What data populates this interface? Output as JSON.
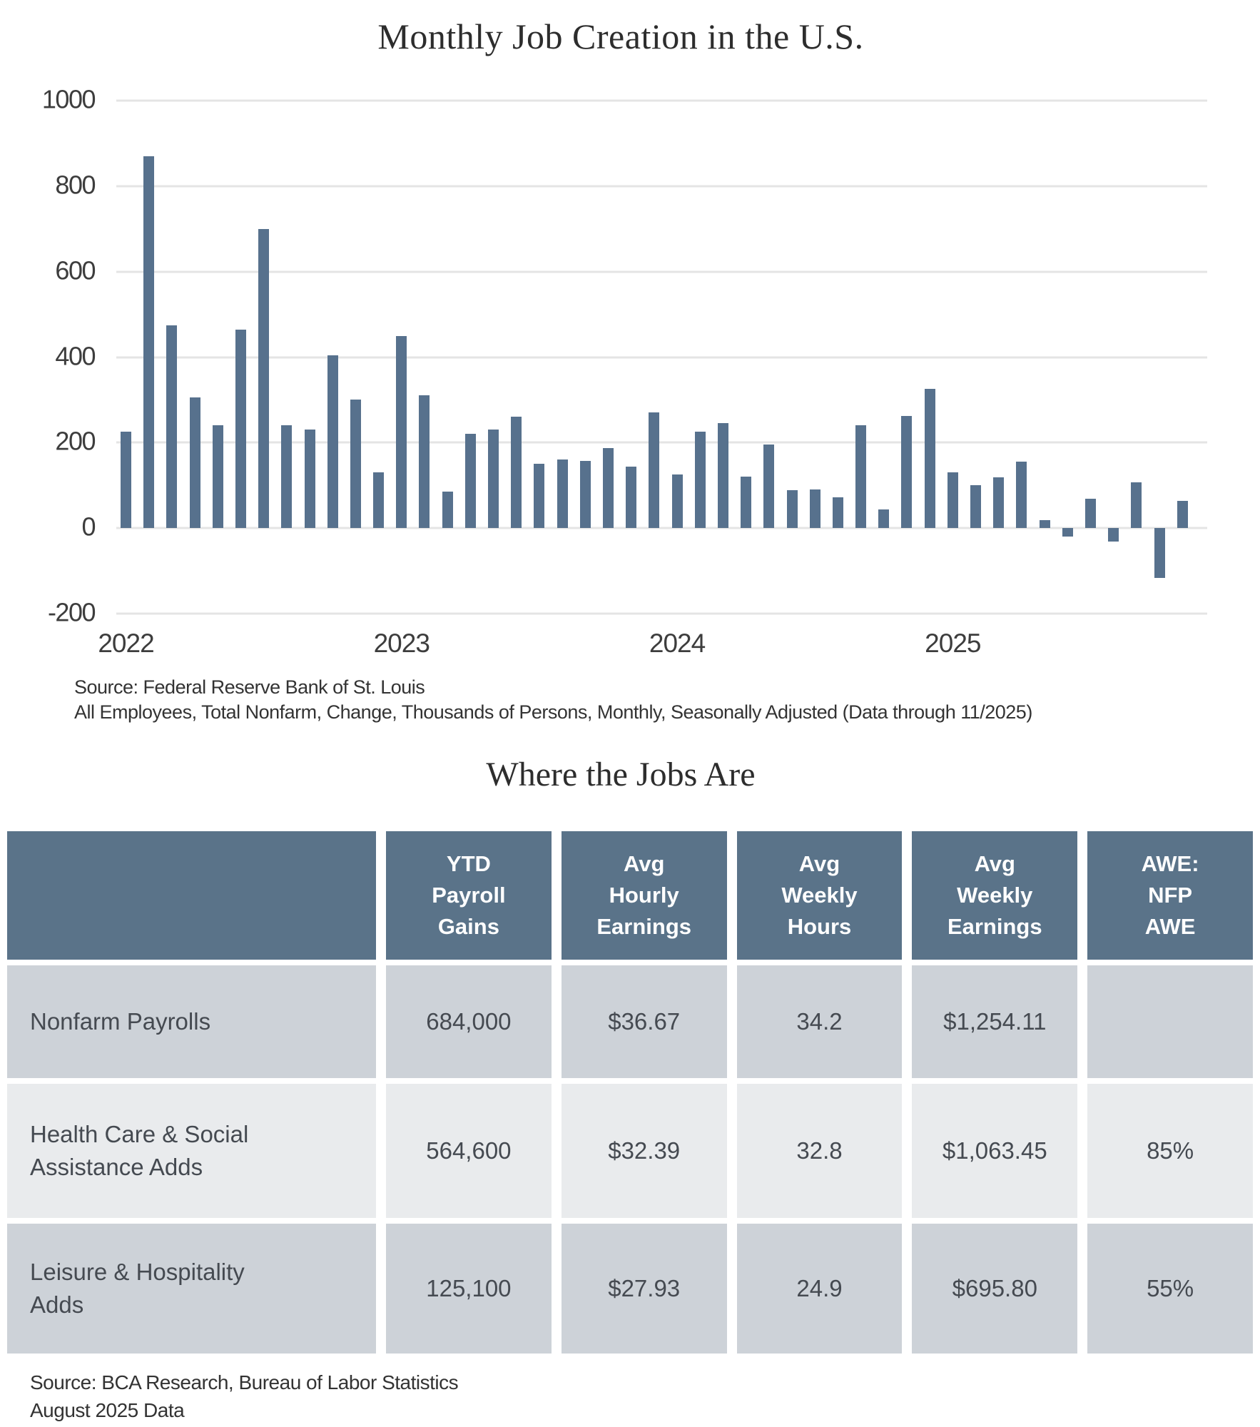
{
  "chart": {
    "title": "Monthly Job Creation in the U.S.",
    "source_line1": "Source: Federal Reserve Bank of St. Louis",
    "source_line2": "All Employees, Total Nonfarm, Change, Thousands of Persons, Monthly, Seasonally Adjusted (Data through 11/2025)",
    "y_ticks": [
      1000,
      800,
      600,
      400,
      200,
      0,
      -200
    ],
    "year_ticks": [
      "2022",
      "2023",
      "2024",
      "2025"
    ],
    "bar_color": "#57718d",
    "grid_color": "#e4e4e4"
  },
  "chart_data": {
    "type": "bar",
    "title": "Monthly Job Creation in the U.S.",
    "xlabel": "",
    "ylabel": "Change, Thousands of Persons",
    "ylim": [
      -200,
      1000
    ],
    "gridline_step": 200,
    "grid": true,
    "x": [
      "2022-01",
      "2022-02",
      "2022-03",
      "2022-04",
      "2022-05",
      "2022-06",
      "2022-07",
      "2022-08",
      "2022-09",
      "2022-10",
      "2022-11",
      "2022-12",
      "2023-01",
      "2023-02",
      "2023-03",
      "2023-04",
      "2023-05",
      "2023-06",
      "2023-07",
      "2023-08",
      "2023-09",
      "2023-10",
      "2023-11",
      "2023-12",
      "2024-01",
      "2024-02",
      "2024-03",
      "2024-04",
      "2024-05",
      "2024-06",
      "2024-07",
      "2024-08",
      "2024-09",
      "2024-10",
      "2024-11",
      "2024-12",
      "2025-01",
      "2025-02",
      "2025-03",
      "2025-04",
      "2025-05",
      "2025-06",
      "2025-07",
      "2025-08",
      "2025-09",
      "2025-10",
      "2025-11"
    ],
    "values": [
      225,
      870,
      475,
      305,
      240,
      465,
      700,
      240,
      230,
      405,
      300,
      130,
      450,
      310,
      85,
      220,
      230,
      260,
      150,
      160,
      158,
      187,
      143,
      270,
      125,
      225,
      245,
      120,
      195,
      88,
      90,
      72,
      240,
      44,
      262,
      325,
      130,
      100,
      118,
      155,
      18,
      -20,
      68,
      -32,
      107,
      -117,
      63
    ]
  },
  "table": {
    "title": "Where the Jobs Are",
    "columns": [
      "YTD\nPayroll\nGains",
      "Avg\nHourly\nEarnings",
      "Avg\nWeekly\nHours",
      "Avg\nWeekly\nEarnings",
      "AWE:\nNFP\nAWE"
    ],
    "rows": [
      {
        "label": "Nonfarm Payrolls",
        "values": [
          "684,000",
          "$36.67",
          "34.2",
          "$1,254.11",
          ""
        ]
      },
      {
        "label": "Health Care & Social\nAssistance Adds",
        "values": [
          "564,600",
          "$32.39",
          "32.8",
          "$1,063.45",
          "85%"
        ]
      },
      {
        "label": "Leisure & Hospitality\nAdds",
        "values": [
          "125,100",
          "$27.93",
          "24.9",
          "$695.80",
          "55%"
        ]
      }
    ],
    "header_bg": "#5a7389",
    "row_bg_odd": "#cdd2d8",
    "row_bg_even": "#e9ebed",
    "source_line1": "Source: BCA Research, Bureau of Labor Statistics",
    "source_line2": "August 2025 Data"
  }
}
